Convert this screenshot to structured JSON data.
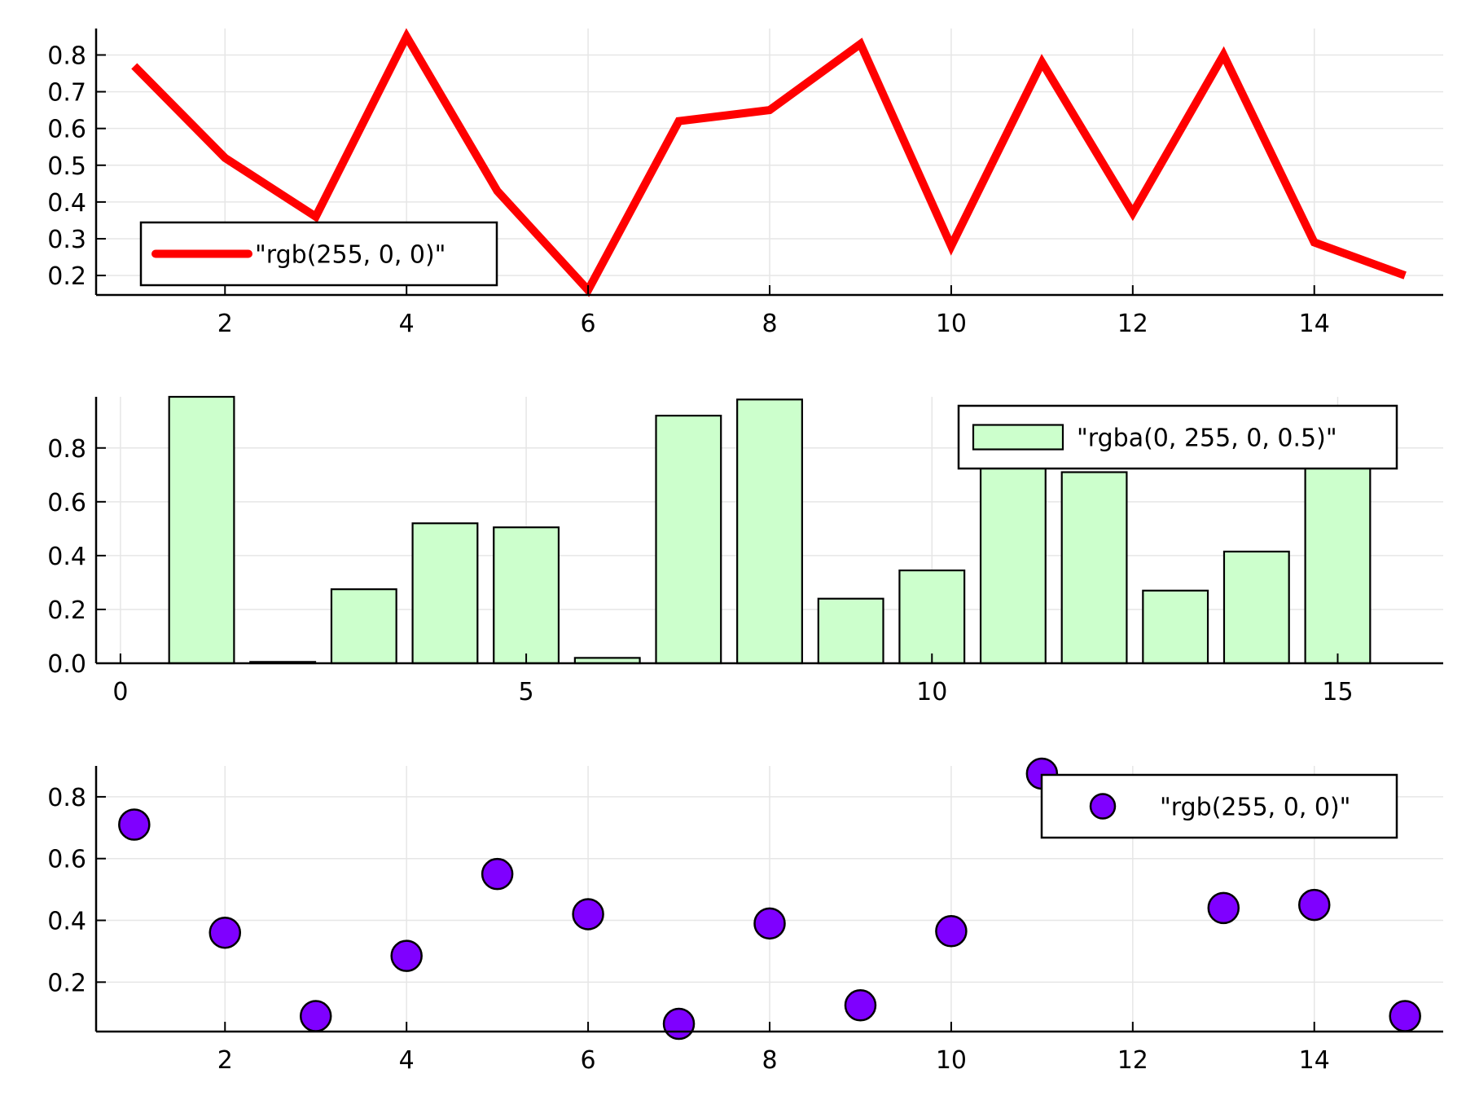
{
  "colors": {
    "line": "#ff0000",
    "bar_fill": "#ccffcc",
    "scatter_fill": "#7f00ff",
    "grid": "#e6e6e6",
    "axis": "#000000"
  },
  "chart_data": [
    {
      "type": "line",
      "title": "",
      "xlabel": "",
      "ylabel": "",
      "xlim": [
        0.58,
        15.42
      ],
      "ylim": [
        0.147,
        0.872
      ],
      "xticks": [
        2,
        4,
        6,
        8,
        10,
        12,
        14
      ],
      "yticks": [
        0.2,
        0.3,
        0.4,
        0.5,
        0.6,
        0.7,
        0.8
      ],
      "x_tick_labels": [
        "2",
        "4",
        "6",
        "8",
        "10",
        "12",
        "14"
      ],
      "y_tick_labels": [
        "0.2",
        "0.3",
        "0.4",
        "0.5",
        "0.6",
        "0.7",
        "0.8"
      ],
      "grid": true,
      "legend_position": "bottom-left",
      "series": [
        {
          "name": "\"rgb(255, 0, 0)\"",
          "color": "#ff0000",
          "x": [
            1,
            2,
            3,
            4,
            5,
            6,
            7,
            8,
            9,
            10,
            11,
            12,
            13,
            14,
            15
          ],
          "y": [
            0.77,
            0.52,
            0.36,
            0.85,
            0.43,
            0.16,
            0.62,
            0.65,
            0.83,
            0.28,
            0.78,
            0.37,
            0.8,
            0.29,
            0.2
          ]
        }
      ]
    },
    {
      "type": "bar",
      "title": "",
      "xlabel": "",
      "ylabel": "",
      "xlim": [
        -0.3,
        16.3
      ],
      "ylim": [
        0.0,
        0.99
      ],
      "xticks": [
        0,
        5,
        10,
        15
      ],
      "yticks": [
        0.0,
        0.2,
        0.4,
        0.6,
        0.8
      ],
      "x_tick_labels": [
        "0",
        "5",
        "10",
        "15"
      ],
      "y_tick_labels": [
        "0.0",
        "0.2",
        "0.4",
        "0.6",
        "0.8"
      ],
      "grid": true,
      "legend_position": "top-right",
      "bar_width": 0.8,
      "series": [
        {
          "name": "\"rgba(0, 255, 0, 0.5)\"",
          "color": "#ccffcc",
          "x": [
            1,
            2,
            3,
            4,
            5,
            6,
            7,
            8,
            9,
            10,
            11,
            12,
            13,
            14,
            15
          ],
          "values": [
            0.99,
            0.005,
            0.275,
            0.52,
            0.505,
            0.02,
            0.92,
            0.98,
            0.24,
            0.345,
            0.84,
            0.71,
            0.27,
            0.415,
            0.78
          ]
        }
      ]
    },
    {
      "type": "scatter",
      "title": "",
      "xlabel": "",
      "ylabel": "",
      "xlim": [
        0.58,
        15.42
      ],
      "ylim": [
        0.04,
        0.9
      ],
      "xticks": [
        2,
        4,
        6,
        8,
        10,
        12,
        14
      ],
      "yticks": [
        0.2,
        0.4,
        0.6,
        0.8
      ],
      "x_tick_labels": [
        "2",
        "4",
        "6",
        "8",
        "10",
        "12",
        "14"
      ],
      "y_tick_labels": [
        "0.2",
        "0.4",
        "0.6",
        "0.8"
      ],
      "grid": true,
      "legend_position": "top-right",
      "series": [
        {
          "name": "\"rgb(255, 0, 0)\"",
          "color": "#7f00ff",
          "x": [
            1,
            2,
            3,
            4,
            5,
            6,
            7,
            8,
            9,
            10,
            11,
            12,
            13,
            14,
            15
          ],
          "y": [
            0.71,
            0.36,
            0.09,
            0.285,
            0.55,
            0.42,
            0.065,
            0.39,
            0.125,
            0.365,
            0.875,
            null,
            0.44,
            0.45,
            0.09
          ]
        }
      ]
    }
  ]
}
